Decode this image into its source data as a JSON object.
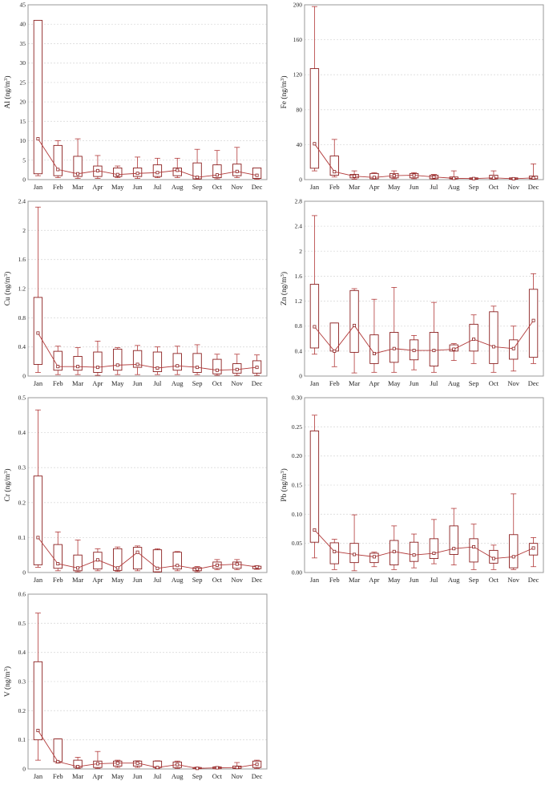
{
  "colors": {
    "box": "#8b2020",
    "line": "#b23a3a",
    "frame": "#9a9a9a",
    "grid": "#dcdcdc"
  },
  "chart_data": [
    {
      "type": "box",
      "ylabel": "Al (ng/m",
      "ylabel_sup": "3",
      "ylabel_end": ")",
      "categories": [
        "Jan",
        "Feb",
        "Mar",
        "Apr",
        "May",
        "Jun",
        "Jul",
        "Aug",
        "Sep",
        "Oct",
        "Nov",
        "Dec"
      ],
      "ylim": [
        0,
        45
      ],
      "yticks": [
        0,
        5,
        10,
        15,
        20,
        25,
        30,
        35,
        40,
        45
      ],
      "q1": [
        1.5,
        1.0,
        0.8,
        0.8,
        0.8,
        0.8,
        0.8,
        1.0,
        0.2,
        0.5,
        1.0,
        0.3
      ],
      "q3": [
        41,
        8.8,
        6.0,
        3.5,
        3.0,
        3.0,
        3.8,
        3.0,
        4.3,
        3.8,
        4.0,
        3.0
      ],
      "low": [
        1.0,
        0.5,
        0.3,
        0.3,
        0.5,
        0.3,
        0.5,
        0.5,
        0.1,
        0.2,
        0.5,
        0.1
      ],
      "high": [
        41,
        10,
        10.5,
        6.2,
        3.5,
        5.8,
        5.5,
        5.5,
        7.8,
        7.5,
        8.3,
        3.0
      ],
      "median": [
        10.5,
        2.6,
        1.5,
        2.3,
        1.3,
        1.6,
        1.8,
        2.4,
        0.6,
        1.2,
        2.1,
        1.1
      ]
    },
    {
      "type": "box",
      "ylabel": "Fe (ng/m",
      "ylabel_sup": "3",
      "ylabel_end": ")",
      "categories": [
        "Jan",
        "Feb",
        "Mar",
        "Apr",
        "May",
        "Jun",
        "Jul",
        "Aug",
        "Sep",
        "Oct",
        "Nov",
        "Dec"
      ],
      "ylim": [
        0,
        200
      ],
      "yticks": [
        0,
        40,
        80,
        120,
        160,
        200
      ],
      "q1": [
        13,
        5,
        2,
        1,
        2,
        2,
        1,
        1,
        0.5,
        1,
        0.5,
        1
      ],
      "q3": [
        127,
        27,
        6,
        7,
        7,
        7,
        5,
        3,
        2,
        5,
        2,
        4
      ],
      "low": [
        10,
        3,
        0.5,
        0.5,
        1,
        1,
        0.5,
        0.5,
        0.2,
        0.5,
        0.2,
        0.5
      ],
      "high": [
        198,
        46,
        10,
        8,
        10,
        8,
        6,
        10,
        2,
        10,
        2,
        18
      ],
      "median": [
        41,
        9,
        4,
        2.5,
        4.5,
        5,
        3,
        1.5,
        1.2,
        2,
        1,
        2
      ]
    },
    {
      "type": "box",
      "ylabel": "Cu (ng/m",
      "ylabel_sup": "3",
      "ylabel_end": ")",
      "categories": [
        "Jan",
        "Feb",
        "Mar",
        "Apr",
        "May",
        "Jun",
        "Jul",
        "Aug",
        "Sep",
        "Oct",
        "Nov",
        "Dec"
      ],
      "ylim": [
        0,
        2.4
      ],
      "yticks": [
        0,
        0.4,
        0.8,
        1.2,
        1.6,
        2.0,
        2.4
      ],
      "q1": [
        0.16,
        0.08,
        0.08,
        0.05,
        0.08,
        0.12,
        0.06,
        0.08,
        0.05,
        0.03,
        0.04,
        0.04
      ],
      "q3": [
        1.08,
        0.34,
        0.27,
        0.33,
        0.37,
        0.35,
        0.33,
        0.31,
        0.31,
        0.23,
        0.17,
        0.21
      ],
      "low": [
        0.05,
        0.02,
        0.02,
        0.01,
        0.02,
        0.02,
        0.02,
        0.02,
        0.02,
        0.01,
        0.01,
        0.01
      ],
      "high": [
        2.32,
        0.41,
        0.39,
        0.48,
        0.39,
        0.42,
        0.4,
        0.41,
        0.43,
        0.3,
        0.3,
        0.29
      ],
      "median": [
        0.59,
        0.13,
        0.13,
        0.12,
        0.15,
        0.16,
        0.11,
        0.14,
        0.12,
        0.08,
        0.09,
        0.12
      ]
    },
    {
      "type": "box",
      "ylabel": "Zn (ng/m",
      "ylabel_sup": "3",
      "ylabel_end": ")",
      "categories": [
        "Jan",
        "Feb",
        "Mar",
        "Apr",
        "May",
        "Jun",
        "Jul",
        "Aug",
        "Sep",
        "Oct",
        "Nov",
        "Dec"
      ],
      "ylim": [
        0,
        2.8
      ],
      "yticks": [
        0,
        0.4,
        0.8,
        1.2,
        1.6,
        2.0,
        2.4,
        2.8
      ],
      "q1": [
        0.45,
        0.4,
        0.38,
        0.2,
        0.22,
        0.26,
        0.16,
        0.4,
        0.4,
        0.2,
        0.27,
        0.3
      ],
      "q3": [
        1.47,
        0.85,
        1.37,
        0.66,
        0.7,
        0.58,
        0.7,
        0.5,
        0.83,
        1.03,
        0.58,
        1.39
      ],
      "low": [
        0.35,
        0.15,
        0.05,
        0.06,
        0.06,
        0.1,
        0.06,
        0.25,
        0.2,
        0.06,
        0.08,
        0.2
      ],
      "high": [
        2.57,
        0.85,
        1.4,
        1.23,
        1.42,
        0.65,
        1.18,
        0.52,
        0.98,
        1.12,
        0.8,
        1.64
      ],
      "median": [
        0.79,
        0.4,
        0.81,
        0.36,
        0.44,
        0.41,
        0.41,
        0.43,
        0.59,
        0.47,
        0.44,
        0.89
      ]
    },
    {
      "type": "box",
      "ylabel": "Cr (ng/m",
      "ylabel_sup": "3",
      "ylabel_end": ")",
      "categories": [
        "Jan",
        "Feb",
        "Mar",
        "Apr",
        "May",
        "Jun",
        "Jul",
        "Aug",
        "Sep",
        "Oct",
        "Nov",
        "Dec"
      ],
      "ylim": [
        0,
        0.5
      ],
      "yticks": [
        0,
        0.1,
        0.2,
        0.3,
        0.4,
        0.5
      ],
      "q1": [
        0.022,
        0.012,
        0.005,
        0.01,
        0.006,
        0.01,
        0.002,
        0.01,
        0.005,
        0.012,
        0.012,
        0.011
      ],
      "q3": [
        0.276,
        0.08,
        0.05,
        0.058,
        0.068,
        0.072,
        0.065,
        0.058,
        0.014,
        0.03,
        0.03,
        0.018
      ],
      "low": [
        0.015,
        0.005,
        0.002,
        0.005,
        0.003,
        0.005,
        0.001,
        0.005,
        0.002,
        0.008,
        0.008,
        0.009
      ],
      "high": [
        0.465,
        0.116,
        0.093,
        0.068,
        0.073,
        0.076,
        0.068,
        0.06,
        0.017,
        0.037,
        0.037,
        0.019
      ],
      "median": [
        0.1,
        0.025,
        0.013,
        0.036,
        0.013,
        0.058,
        0.012,
        0.02,
        0.01,
        0.021,
        0.024,
        0.016
      ]
    },
    {
      "type": "box",
      "ylabel": "Pb (ng/m",
      "ylabel_sup": "3",
      "ylabel_end": ")",
      "categories": [
        "Jan",
        "Feb",
        "Mar",
        "Apr",
        "May",
        "Jun",
        "Jul",
        "Aug",
        "Sep",
        "Oct",
        "Nov",
        "Dec"
      ],
      "ylim": [
        0,
        0.3
      ],
      "yticks": [
        0,
        0.05,
        0.1,
        0.15,
        0.2,
        0.25,
        0.3
      ],
      "tick_labels": [
        "0.00",
        "0.05",
        "0.10",
        "0.15",
        "0.20",
        "0.25",
        "0.30"
      ],
      "q1": [
        0.052,
        0.015,
        0.017,
        0.017,
        0.013,
        0.019,
        0.024,
        0.031,
        0.018,
        0.016,
        0.008,
        0.03
      ],
      "q3": [
        0.243,
        0.051,
        0.05,
        0.033,
        0.055,
        0.052,
        0.058,
        0.08,
        0.058,
        0.038,
        0.065,
        0.05
      ],
      "low": [
        0.025,
        0.005,
        0.003,
        0.01,
        0.005,
        0.008,
        0.015,
        0.013,
        0.005,
        0.005,
        0.005,
        0.01
      ],
      "high": [
        0.27,
        0.057,
        0.099,
        0.035,
        0.08,
        0.066,
        0.091,
        0.11,
        0.083,
        0.047,
        0.135,
        0.06
      ],
      "median": [
        0.073,
        0.036,
        0.031,
        0.027,
        0.036,
        0.03,
        0.033,
        0.041,
        0.044,
        0.024,
        0.027,
        0.042
      ]
    },
    {
      "type": "box",
      "ylabel": "V (ng/m",
      "ylabel_sup": "3",
      "ylabel_end": ")",
      "categories": [
        "Jan",
        "Feb",
        "Mar",
        "Apr",
        "May",
        "Jun",
        "Jul",
        "Aug",
        "Sep",
        "Oct",
        "Nov",
        "Dec"
      ],
      "ylim": [
        0,
        0.6
      ],
      "yticks": [
        0,
        0.1,
        0.2,
        0.3,
        0.4,
        0.5,
        0.6
      ],
      "q1": [
        0.1,
        0.025,
        0.005,
        0.005,
        0.01,
        0.01,
        0.005,
        0.005,
        0.001,
        0.001,
        0.002,
        0.005
      ],
      "q3": [
        0.368,
        0.103,
        0.03,
        0.027,
        0.027,
        0.027,
        0.027,
        0.024,
        0.005,
        0.007,
        0.01,
        0.027
      ],
      "low": [
        0.03,
        0.02,
        0.002,
        0.002,
        0.005,
        0.005,
        0.002,
        0.002,
        0.0005,
        0.0005,
        0.001,
        0.002
      ],
      "high": [
        0.535,
        0.103,
        0.04,
        0.06,
        0.03,
        0.028,
        0.028,
        0.027,
        0.006,
        0.008,
        0.022,
        0.03
      ],
      "median": [
        0.132,
        0.025,
        0.008,
        0.018,
        0.02,
        0.02,
        0.005,
        0.015,
        0.002,
        0.004,
        0.005,
        0.016
      ]
    }
  ]
}
